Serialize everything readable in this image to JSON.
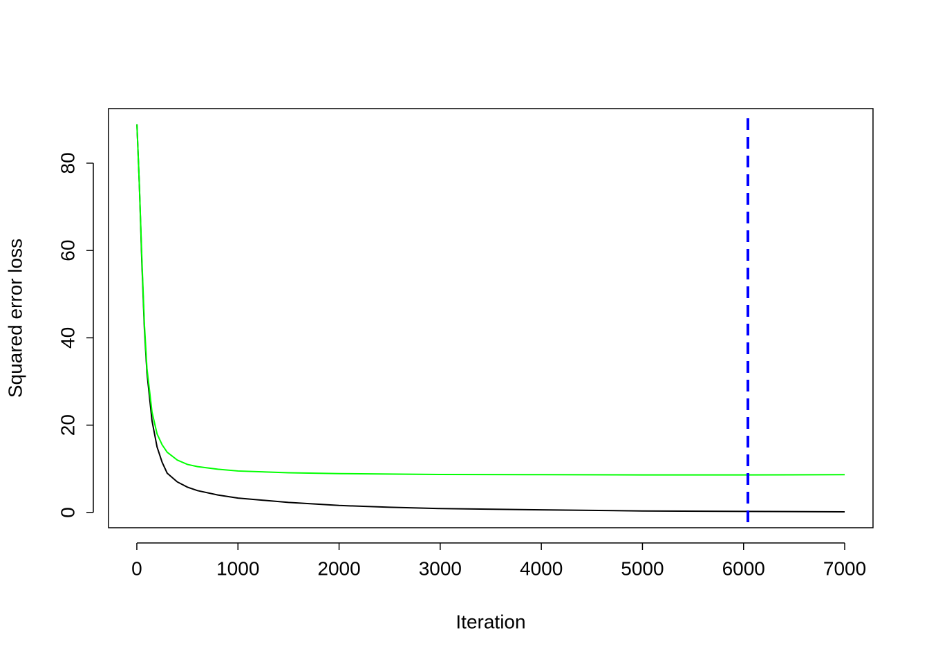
{
  "chart_data": {
    "type": "line",
    "xlabel": "Iteration",
    "ylabel": "Squared error loss",
    "x": [
      1,
      25,
      50,
      75,
      100,
      150,
      200,
      250,
      300,
      400,
      500,
      600,
      800,
      1000,
      1500,
      2000,
      2500,
      3000,
      4000,
      5000,
      6000,
      7000
    ],
    "series": [
      {
        "color": "#000000",
        "values": [
          88.9,
          75,
          57,
          42,
          32,
          21,
          15,
          11.5,
          9,
          7,
          5.8,
          5,
          4,
          3.3,
          2.3,
          1.6,
          1.2,
          0.9,
          0.6,
          0.35,
          0.25,
          0.15
        ]
      },
      {
        "color": "#00ff00",
        "values": [
          88.9,
          75,
          58,
          43,
          33,
          23,
          18,
          15.5,
          13.8,
          12,
          11,
          10.5,
          9.9,
          9.5,
          9.1,
          8.9,
          8.8,
          8.7,
          8.65,
          8.6,
          8.6,
          8.65
        ]
      }
    ],
    "vline": {
      "x": 6043,
      "color": "#0000ff",
      "dashed": true
    },
    "xlim": [
      -280,
      7280
    ],
    "xticks": [
      0,
      1000,
      2000,
      3000,
      4000,
      5000,
      6000,
      7000
    ],
    "ylim": [
      -3.5,
      92.5
    ],
    "yticks": [
      0,
      20,
      40,
      60,
      80
    ],
    "grid": false
  }
}
